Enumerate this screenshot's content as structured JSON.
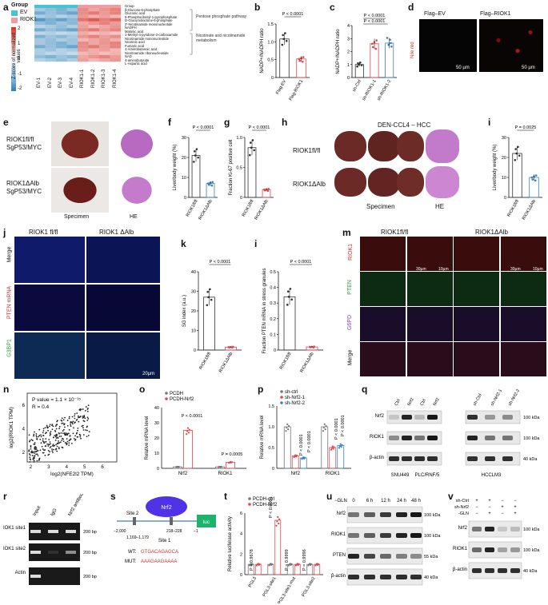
{
  "panels": {
    "a": {
      "label": "a",
      "legend_title": "Group",
      "legend_items": [
        "EV",
        "RIOK1"
      ],
      "legend_colors": [
        "#43c6d2",
        "#f09ca3"
      ],
      "colorbar_label": "Z-score of normalized values",
      "colorbar_ticks": [
        "2",
        "1",
        "0",
        "-1",
        "-2"
      ],
      "columns": [
        "EV-1",
        "EV-2",
        "EV-3",
        "EV-4",
        "RIOK1-1",
        "RIOK1-2",
        "RIOK1-3",
        "RIOK1-4"
      ],
      "metabolites": [
        "Group",
        "β-Glucose-6-phosphate",
        "Gluconic acid",
        "5-Phosphoribosyl-1-pyrophosphate",
        "D-Glucurnolactone-6-phosphate",
        "2'-Nicotinamide mononucleotide",
        "NADPH",
        "Malonic acid",
        "1-Methyl-4-pyridone-3-carboxamide",
        "Nicotinamide mononucleotide",
        "Nicotinic acid",
        "Fumaric acid",
        "4-Aminobutanoic acid",
        "Nicotinamide riboneucleoside",
        "NAD",
        "4-aminobutyrate",
        "L-Aspartic acid"
      ],
      "pathways": [
        "Pentose phosphate pathway",
        "Nicotinate and nicotinamide metabolism"
      ]
    },
    "b": {
      "label": "b",
      "ylabel": "NADP+/NADPH ratio",
      "pvalue": "P < 0.0001",
      "yticks": [
        "0",
        "0.5",
        "1.0",
        "1.5"
      ],
      "chart_data": {
        "type": "bar",
        "categories": [
          "Flag-EV",
          "Flag-RIOK1"
        ],
        "values": [
          1.08,
          0.52
        ],
        "ylim": [
          0,
          1.5
        ]
      }
    },
    "c": {
      "label": "c",
      "ylabel": "NADP+/NADPH ratio",
      "pvalues": [
        "P < 0.0001",
        "P < 0.0001"
      ],
      "yticks": [
        "0",
        "1",
        "2",
        "3",
        "4"
      ],
      "chart_data": {
        "type": "bar",
        "categories": [
          "sh-Ctrl",
          "sh-RIOK1-1",
          "sh-RIOK1-2"
        ],
        "values": [
          1.0,
          2.6,
          2.65
        ],
        "ylim": [
          0,
          4
        ]
      }
    },
    "d": {
      "label": "d",
      "titles": [
        "Flag–EV",
        "Flag–RIOK1"
      ],
      "side_label": "Nile red",
      "scale": [
        "50 µm",
        "50 µm"
      ]
    },
    "e": {
      "label": "e",
      "row1": "RIOK1fl/fl SgP53/MYC",
      "row2": "RIOK1ΔAlb SgP53/MYC",
      "col1": "Specimen",
      "col2": "HE"
    },
    "f": {
      "label": "f",
      "ylabel": "Liver/body weight (%)",
      "pvalue": "P < 0.0001",
      "yticks": [
        "0",
        "10",
        "20",
        "30"
      ],
      "chart_data": {
        "type": "bar",
        "categories": [
          "RIOK1fl/fl",
          "RIOK1ΔAlb"
        ],
        "values": [
          21,
          7
        ],
        "ylim": [
          0,
          30
        ]
      }
    },
    "g": {
      "label": "g",
      "ylabel": "Fraction Ki-67 positive cell",
      "pvalue": "P < 0.0001",
      "yticks": [
        "0",
        "0.5",
        "1.0"
      ],
      "chart_data": {
        "type": "bar",
        "categories": [
          "RIOK1fl/fl",
          "RIOK1ΔAlb"
        ],
        "values": [
          0.83,
          0.13
        ],
        "ylim": [
          0,
          1.0
        ]
      }
    },
    "h": {
      "label": "h",
      "title": "DEN-CCL4 – HCC",
      "row1": "RIOK1fl/fl",
      "row2": "RIOK1ΔAlb",
      "col1": "Specimen",
      "col2": "HE"
    },
    "i_right": {
      "label": "i",
      "ylabel": "Liver/body weight (%)",
      "pvalue": "P = 0.0025",
      "yticks": [
        "0",
        "10",
        "20",
        "30"
      ],
      "chart_data": {
        "type": "bar",
        "categories": [
          "RIOK1fl/fl",
          "RIOK1ΔAlb"
        ],
        "values": [
          22,
          10
        ],
        "ylim": [
          0,
          30
        ]
      }
    },
    "j": {
      "label": "j",
      "cols": [
        "RIOK1 fl/fl",
        "RIOK1 ΔAlb"
      ],
      "rows": [
        "Merge",
        "PTEN mRNA",
        "G3BP1"
      ],
      "scale": "20µm"
    },
    "k": {
      "label": "k",
      "ylabel": "SG index (a.u.)",
      "pvalue": "P < 0.0001",
      "yticks": [
        "0",
        "10",
        "20",
        "30",
        "40"
      ],
      "chart_data": {
        "type": "bar",
        "categories": [
          "RIOK1fl/fl",
          "RIOK1ΔAlb"
        ],
        "values": [
          27,
          1.5
        ],
        "ylim": [
          0,
          40
        ]
      }
    },
    "i_mid": {
      "label": "i",
      "ylabel": "Fraction PTEN mRNA in stress granules",
      "pvalue": "P < 0.0001",
      "yticks": [
        "0",
        "0.1",
        "0.2",
        "0.3",
        "0.4",
        "0.5"
      ],
      "chart_data": {
        "type": "bar",
        "categories": [
          "RIOK1fl/fl",
          "RIOK1ΔAlb"
        ],
        "values": [
          0.34,
          0.02
        ],
        "ylim": [
          0,
          0.5
        ]
      }
    },
    "m": {
      "label": "m",
      "cols": [
        "RIOK1fl/fl",
        "RIOK1ΔAlb"
      ],
      "rows": [
        "RIOK1",
        "PTEN",
        "G6PD",
        "Merge"
      ],
      "scales": [
        "30µm",
        "10µm",
        "30µm",
        "10µm"
      ]
    },
    "n": {
      "label": "n",
      "ylabel": "log2(RIOK1 TPM)",
      "xlabel": "log2(NFE2l2 TPM)",
      "stat1": "P value = 1.1 × 10⁻¹⁵",
      "stat2": "R = 0.4",
      "xticks": [
        "2",
        "3",
        "4",
        "5",
        "6"
      ],
      "yticks": [
        "2",
        "4",
        "6"
      ],
      "chart_data": {
        "type": "scatter",
        "x": [
          2,
          6.5
        ],
        "y": [
          1,
          7
        ],
        "xlim": [
          1.8,
          6.8
        ],
        "ylim": [
          1.2,
          7
        ]
      }
    },
    "o": {
      "label": "o",
      "ylabel": "Relative mRNA level",
      "legend": [
        "PCDH",
        "PCDH-Nrf2"
      ],
      "pvalues": [
        "P < 0.0001",
        "P = 0.0005"
      ],
      "yticks": [
        "0",
        "10",
        "20",
        "30",
        "40"
      ],
      "chart_data": {
        "type": "bar",
        "categories": [
          "Nrf2",
          "RIOK1"
        ],
        "series": [
          {
            "name": "PCDH",
            "values": [
              1,
              1
            ]
          },
          {
            "name": "PCDH-Nrf2",
            "values": [
              25,
              4
            ]
          }
        ],
        "ylim": [
          0,
          40
        ]
      }
    },
    "p": {
      "label": "p",
      "ylabel": "Relative mRNA level",
      "legend": [
        "sh-ctrl",
        "sh-Nrf2-1",
        "sh-Nrf2-2"
      ],
      "pvalues": [
        "P < 0.0001",
        "P < 0.0001",
        "P < 0.0001",
        "P < 0.0001"
      ],
      "yticks": [
        "0",
        "0.5",
        "1.0",
        "1.5"
      ],
      "chart_data": {
        "type": "bar",
        "categories": [
          "Nrf2",
          "RIOK1"
        ],
        "series": [
          {
            "name": "sh-ctrl",
            "values": [
              1.0,
              1.0
            ]
          },
          {
            "name": "sh-Nrf2-1",
            "values": [
              0.3,
              0.5
            ]
          },
          {
            "name": "sh-Nrf2-2",
            "values": [
              0.25,
              0.55
            ]
          }
        ],
        "ylim": [
          0,
          1.5
        ]
      }
    },
    "q": {
      "label": "q",
      "lanes": [
        "Ctrl",
        "Nrf2",
        "Ctrl",
        "Nrf2",
        "sh-Ctrl",
        "sh-Nrf2-1",
        "sh-Nrf2-2"
      ],
      "rows": [
        "Nrf2",
        "RIOK1",
        "β-actin"
      ],
      "kda": [
        "100 kDa",
        "100 kDa",
        "40 kDa"
      ],
      "cells": [
        "SNU449",
        "PLC/RNF/5",
        "HCCLM3"
      ]
    },
    "r": {
      "label": "r",
      "lanes": [
        "Input",
        "IgG",
        "Nrf2 antibody"
      ],
      "rows": [
        "RIOK1 site1",
        "RIOK1 site2",
        "Actin"
      ],
      "sizes": [
        "200 bp",
        "200 bp",
        "200 bp"
      ]
    },
    "s": {
      "label": "s",
      "nrf2": "Nrf2",
      "luc": "luc",
      "site2": "Site 2",
      "site1": "Site 1",
      "pos": [
        "−2,000",
        "1,169–1,179",
        "218–228",
        "−1"
      ],
      "wt_label": "WT:",
      "wt_seq": "GTGACAGAGCA",
      "mut_label": "MUT:",
      "mut_seq": "AAAGAAGAAAA"
    },
    "t": {
      "label": "t",
      "ylabel": "Relative luciferase activity",
      "legend": [
        "PCDH-ctrl",
        "PCDH-Nrf2"
      ],
      "pvalues": [
        "P = 0.9678",
        "P < 0.0001",
        "P > 0.9999",
        "P = 0.9996"
      ],
      "yticks": [
        "0",
        "2",
        "4",
        "6"
      ],
      "chart_data": {
        "type": "bar",
        "categories": [
          "PGL3",
          "PGL3-site1",
          "PGL3-site1-mut",
          "PGL3-site2"
        ],
        "series": [
          {
            "name": "PCDH-ctrl",
            "values": [
              1,
              1,
              1,
              1
            ]
          },
          {
            "name": "PCDH-Nrf2",
            "values": [
              1,
              5.3,
              1,
              1
            ]
          }
        ],
        "ylim": [
          0,
          6
        ]
      }
    },
    "u": {
      "label": "u",
      "cond": "−GLN",
      "times": [
        "0",
        "6 h",
        "12 h",
        "24 h",
        "48 h"
      ],
      "rows": [
        "Nrf2",
        "RIOK1",
        "PTEN",
        "β-actin"
      ],
      "kda": [
        "100 kDa",
        "100 kDa",
        "55 kDa",
        "40 kDa"
      ]
    },
    "v": {
      "label": "v",
      "conds": [
        "sh-Ctrl",
        "sh-Nrf2",
        "-GLN"
      ],
      "signs": [
        [
          "+",
          "+",
          "−",
          "−"
        ],
        [
          "−",
          "−",
          "+",
          "+"
        ],
        [
          "−",
          "+",
          "−",
          "+"
        ]
      ],
      "rows": [
        "Nrf2",
        "RIOK1",
        "β-actin"
      ],
      "kda": [
        "100 kDa",
        "100 kDa",
        "40 kDa"
      ]
    }
  },
  "colors": {
    "ev": "#43c6d2",
    "riok1": "#f09ca3",
    "red": "#e0474c",
    "blue": "#3a7fc1",
    "grey": "#777777"
  }
}
